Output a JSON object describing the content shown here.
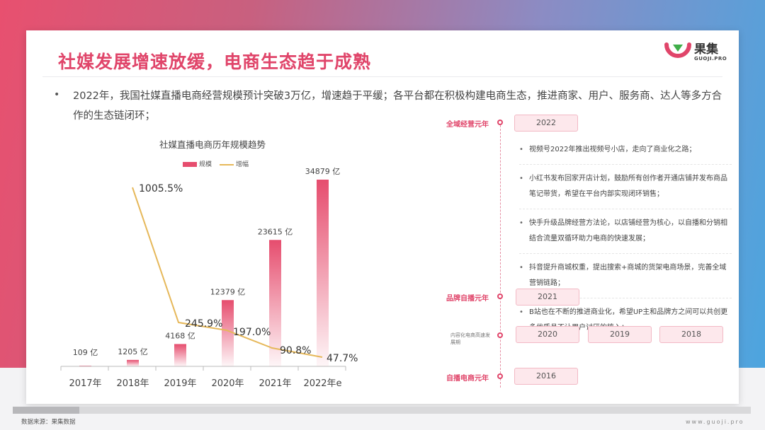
{
  "title": "社媒发展增速放缓，电商生态趋于成熟",
  "logo": {
    "cn": "果集",
    "en": "GUOJI.PRO"
  },
  "paragraph": "2022年，我国社媒直播电商经营规模预计突破3万亿，增速趋于平缓；各平台都在积极构建电商生态，推进商家、用户、服务商、达人等多方合作的生态链闭环；",
  "chart_data": {
    "type": "bar",
    "title": "社媒直播电商历年规模趋势",
    "categories": [
      "2017年",
      "2018年",
      "2019年",
      "2020年",
      "2021年",
      "2022年e"
    ],
    "series": [
      {
        "name": "规模",
        "type": "bar",
        "values": [
          109,
          1205,
          4168,
          12379,
          23615,
          34879
        ],
        "labels": [
          "109 亿",
          "1205 亿",
          "4168 亿",
          "12379 亿",
          "23615 亿",
          "34879 亿"
        ]
      },
      {
        "name": "增幅",
        "type": "line",
        "values": [
          null,
          1005.5,
          245.9,
          197.0,
          90.8,
          47.7
        ],
        "labels": [
          "",
          "1005.5%",
          "245.9%",
          "197.0%",
          "90.8%",
          "47.7%"
        ]
      }
    ],
    "colors": {
      "bar": "#e64d6e",
      "line": "#e6b85a"
    }
  },
  "timeline": {
    "milestones": [
      {
        "label": "全域经营元年",
        "years": [
          "2022"
        ]
      },
      {
        "label": "品牌自播元年",
        "years": [
          "2021"
        ]
      },
      {
        "label": "内容化电商高速发展期",
        "years": [
          "2020",
          "2019",
          "2018"
        ]
      },
      {
        "label": "自播电商元年",
        "years": [
          "2016"
        ]
      }
    ],
    "details": [
      "视频号2022年推出视频号小店，走向了商业化之路；",
      "小红书发布回家开店计划，鼓励所有创作者开通店铺并发布商品笔记带货，希望在平台内部实现闭环销售；",
      "快手升级品牌经营方法论，以店铺经营为核心，以自播和分销相结合流量双循环助力电商的快速发展；",
      "抖音提升商城权重，提出搜索+商城的货架电商场景，完善全域营销链路；",
      "B站也在不断的推进商业化，希望UP主和品牌方之间可以共创更多优质且不让用户讨厌的植入；"
    ]
  },
  "footer": {
    "source": "数据来源：果集数据",
    "url": "www.guoji.pro"
  }
}
